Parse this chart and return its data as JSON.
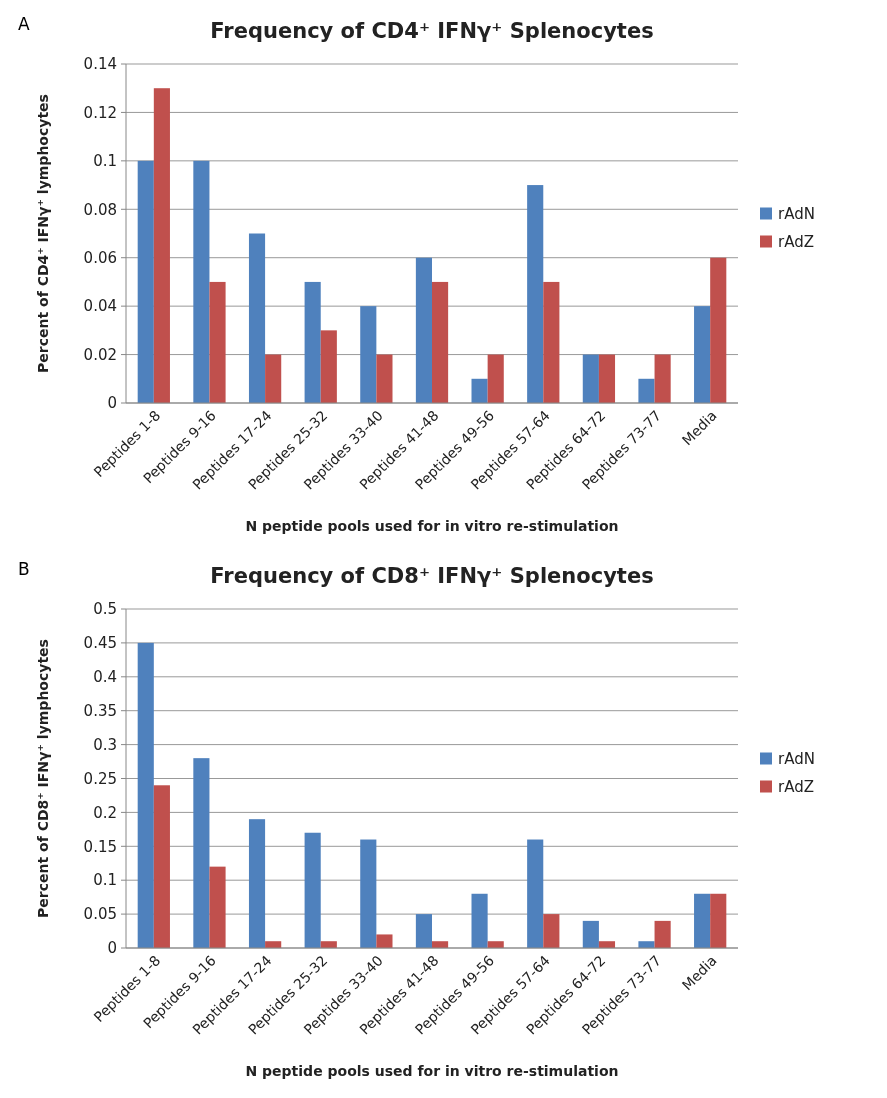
{
  "chart_data": [
    {
      "type": "bar",
      "title": "Frequency of CD4⁺ IFNγ⁺ Splenocytes",
      "xlabel": "N peptide pools used for in vitro re-stimulation",
      "ylabel": "Percent of CD4⁺ IFNγ⁺ lymphocytes",
      "annotations": [
        "A"
      ],
      "categories": [
        "Peptides 1-8",
        "Peptides 9-16",
        "Peptides 17-24",
        "Peptides 25-32",
        "Peptides 33-40",
        "Peptides 41-48",
        "Peptides 49-56",
        "Peptides 57-64",
        "Peptides 64-72",
        "Peptides 73-77",
        "Media"
      ],
      "series": [
        {
          "name": "rAdN",
          "color": "#4f81bd",
          "values": [
            0.1,
            0.1,
            0.07,
            0.05,
            0.04,
            0.06,
            0.01,
            0.09,
            0.02,
            0.01,
            0.04
          ]
        },
        {
          "name": "rAdZ",
          "color": "#c0504d",
          "values": [
            0.13,
            0.05,
            0.02,
            0.03,
            0.02,
            0.05,
            0.02,
            0.05,
            0.02,
            0.02,
            0.06
          ]
        }
      ],
      "ylim": [
        0,
        0.14
      ],
      "yticks": [
        0,
        0.02,
        0.04,
        0.06,
        0.08,
        0.1,
        0.12,
        0.14
      ],
      "grid": "y",
      "legend": "right"
    },
    {
      "type": "bar",
      "title": "Frequency of CD8⁺ IFNγ⁺ Splenocytes",
      "xlabel": "N peptide pools used for in vitro re-stimulation",
      "ylabel": "Percent of CD8⁺ IFNγ⁺ lymphocytes",
      "annotations": [
        "B"
      ],
      "categories": [
        "Peptides 1-8",
        "Peptides 9-16",
        "Peptides 17-24",
        "Peptides 25-32",
        "Peptides 33-40",
        "Peptides 41-48",
        "Peptides 49-56",
        "Peptides 57-64",
        "Peptides 64-72",
        "Peptides 73-77",
        "Media"
      ],
      "series": [
        {
          "name": "rAdN",
          "color": "#4f81bd",
          "values": [
            0.45,
            0.28,
            0.19,
            0.17,
            0.16,
            0.05,
            0.08,
            0.16,
            0.04,
            0.01,
            0.08
          ]
        },
        {
          "name": "rAdZ",
          "color": "#c0504d",
          "values": [
            0.24,
            0.12,
            0.01,
            0.01,
            0.02,
            0.01,
            0.01,
            0.05,
            0.01,
            0.04,
            0.08
          ]
        }
      ],
      "ylim": [
        0,
        0.5
      ],
      "yticks": [
        0,
        0.05,
        0.1,
        0.15,
        0.2,
        0.25,
        0.3,
        0.35,
        0.4,
        0.45,
        0.5
      ],
      "grid": "y",
      "legend": "right"
    }
  ]
}
